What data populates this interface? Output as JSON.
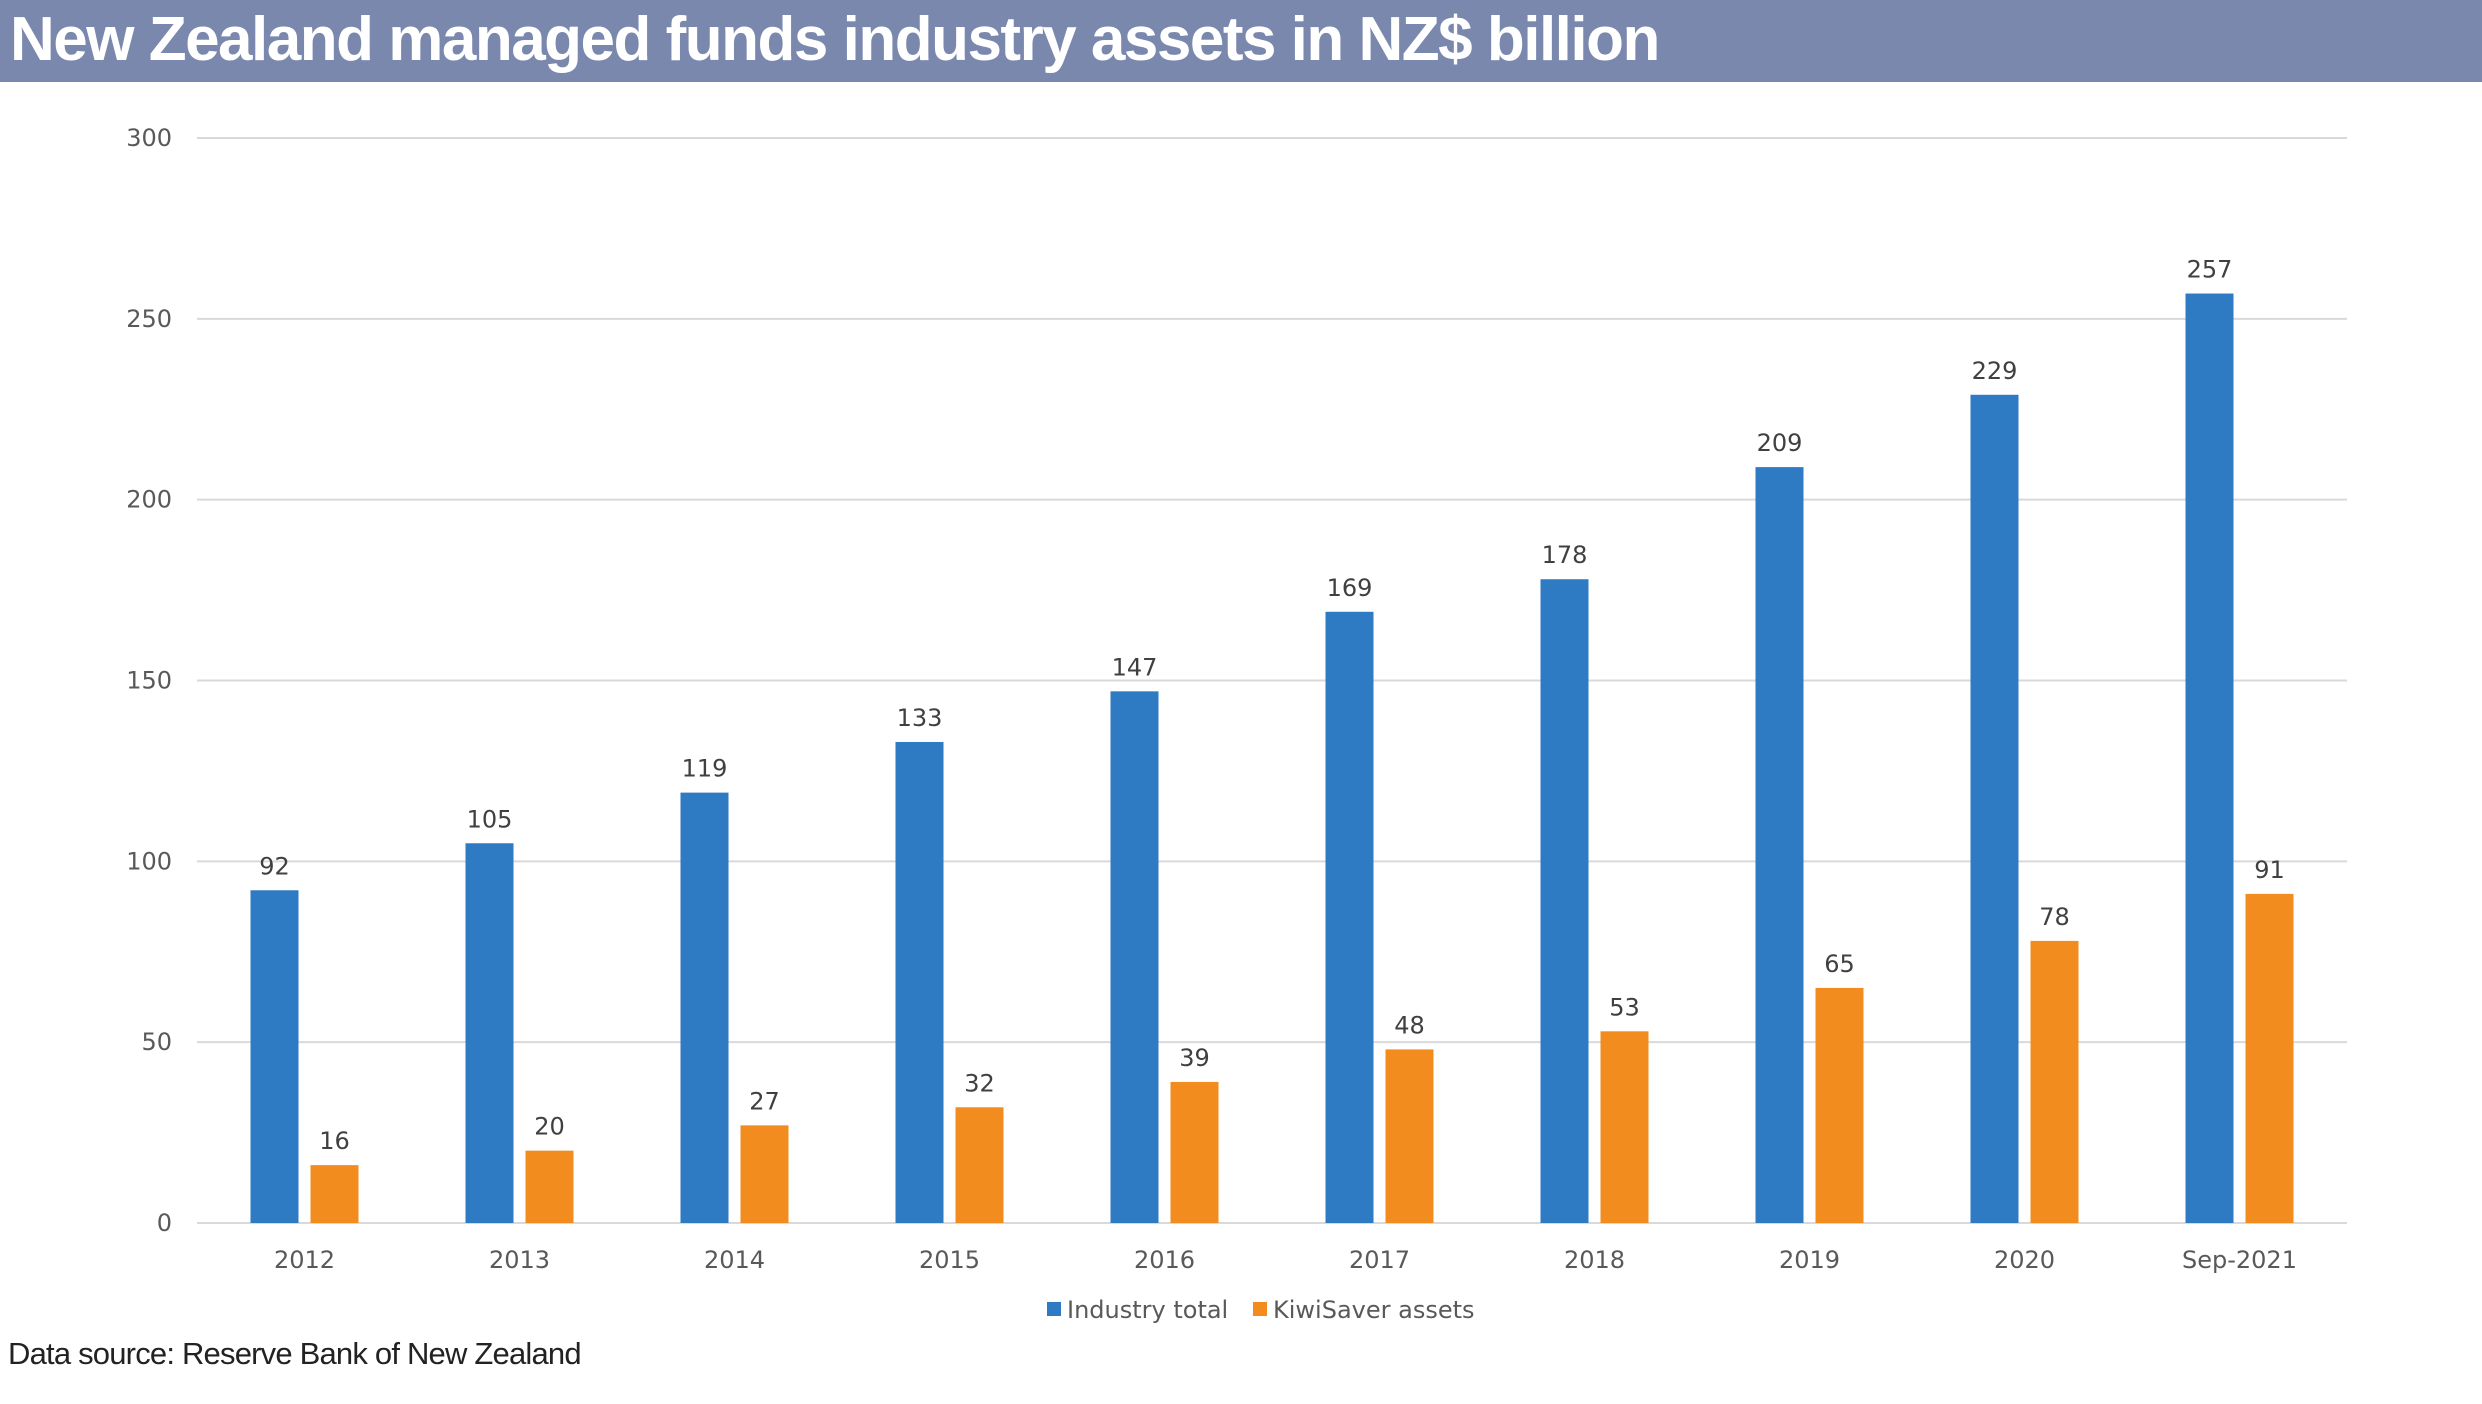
{
  "title": "New Zealand managed funds industry assets in NZ$ billion",
  "source": "Data source: Reserve Bank of New Zealand",
  "colors": {
    "header_bg": "#7b88ad",
    "industry_total": "#2e7bc3",
    "kiwisaver": "#f28c1f",
    "gridline": "#d9d9d9"
  },
  "chart_data": {
    "type": "bar",
    "title": "New Zealand managed funds industry assets in NZ$ billion",
    "xlabel": "",
    "ylabel": "",
    "ylim": [
      0,
      300
    ],
    "yticks": [
      0,
      50,
      100,
      150,
      200,
      250,
      300
    ],
    "grid": true,
    "legend_position": "bottom-center",
    "categories": [
      "2012",
      "2013",
      "2014",
      "2015",
      "2016",
      "2017",
      "2018",
      "2019",
      "2020",
      "Sep-2021"
    ],
    "series": [
      {
        "name": "Industry total",
        "color": "#2e7bc3",
        "values": [
          92,
          105,
          119,
          133,
          147,
          169,
          178,
          209,
          229,
          257
        ]
      },
      {
        "name": "KiwiSaver assets",
        "color": "#f28c1f",
        "values": [
          16,
          20,
          27,
          32,
          39,
          48,
          53,
          65,
          78,
          91
        ]
      }
    ]
  }
}
